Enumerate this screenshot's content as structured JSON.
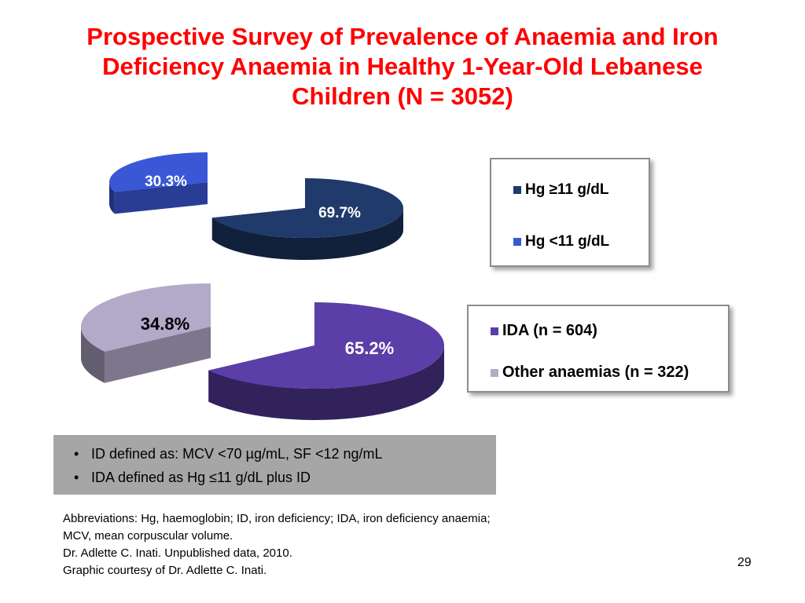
{
  "title": {
    "lines": [
      "Prospective Survey of Prevalence of Anaemia and Iron",
      "Deficiency Anaemia in Healthy 1-Year-Old Lebanese",
      "Children (N = 3052)"
    ]
  },
  "chart_data": [
    {
      "type": "pie",
      "slices": [
        {
          "label": "Hg ≥11 g/dL",
          "value": 69.7,
          "value_label": "69.7%",
          "color": "#1f3a6b"
        },
        {
          "label": "Hg <11 g/dL",
          "value": 30.3,
          "value_label": "30.3%",
          "color": "#3a57d6"
        }
      ],
      "legend_position": "right"
    },
    {
      "type": "pie",
      "slices": [
        {
          "label": "IDA (n = 604)",
          "value": 65.2,
          "value_label": "65.2%",
          "color": "#5b3ea7"
        },
        {
          "label": "Other anaemias (n = 322)",
          "value": 34.8,
          "value_label": "34.8%",
          "color": "#b3a9c9"
        }
      ],
      "legend_position": "right"
    }
  ],
  "notes": {
    "bullets": [
      "ID defined as: MCV <70 µg/mL, SF <12 ng/mL",
      "IDA defined as Hg ≤11 g/dL plus ID"
    ]
  },
  "footer": {
    "lines": [
      "Abbreviations: Hg, haemoglobin; ID, iron deficiency; IDA, iron deficiency anaemia;",
      "MCV, mean corpuscular volume.",
      "Dr. Adlette C. Inati. Unpublished data, 2010.",
      "Graphic courtesy of Dr. Adlette C. Inati."
    ]
  },
  "page_number": "29"
}
